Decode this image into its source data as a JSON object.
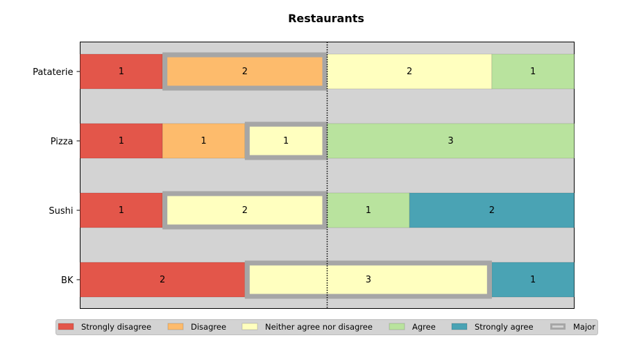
{
  "chart_data": {
    "type": "bar",
    "orientation": "horizontal",
    "stacked": true,
    "title": "Restaurants",
    "categories": [
      "Pataterie",
      "Pizza",
      "Sushi",
      "BK"
    ],
    "responses": [
      "Strongly disagree",
      "Disagree",
      "Neither agree nor disagree",
      "Agree",
      "Strongly agree"
    ],
    "series": [
      {
        "name": "Strongly disagree",
        "color": "#e3564a",
        "values": [
          1,
          1,
          1,
          2
        ]
      },
      {
        "name": "Disagree",
        "color": "#fdbb6c",
        "values": [
          2,
          1,
          0,
          0
        ]
      },
      {
        "name": "Neither agree nor disagree",
        "color": "#ffffbf",
        "values": [
          2,
          1,
          2,
          3
        ]
      },
      {
        "name": "Agree",
        "color": "#b9e39e",
        "values": [
          1,
          3,
          1,
          0
        ]
      },
      {
        "name": "Strongly agree",
        "color": "#4aa3b4",
        "values": [
          0,
          0,
          2,
          1
        ]
      }
    ],
    "major": {
      "name": "Major",
      "color": "#a6a6a6",
      "category_index": [
        1,
        2,
        2,
        2
      ]
    },
    "xlim": [
      0,
      6
    ],
    "midline": 3,
    "background": "#d3d3d3",
    "legend_position": "bottom",
    "grid": false
  }
}
